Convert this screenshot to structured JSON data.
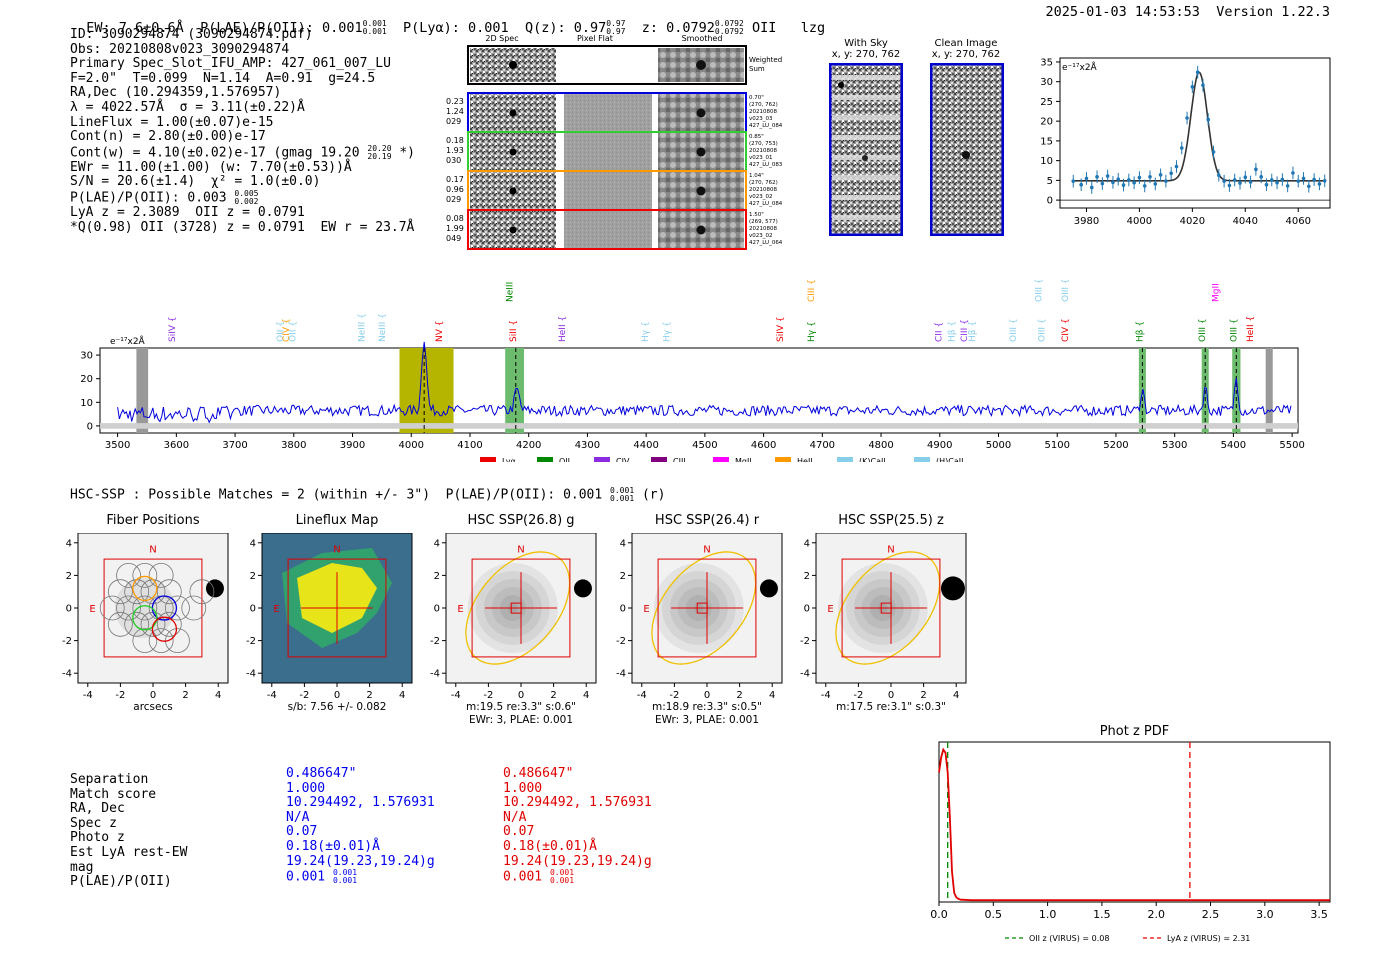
{
  "header": {
    "ew": "EW: 7.6±0.6Å",
    "plae": "P(LAE)/P(OII): 0.001",
    "plae_sup": "0.001",
    "plae_sub": "0.001",
    "plya": "P(Lyα): 0.001",
    "qz": "Q(z): 0.97",
    "qz_sup": "0.97",
    "qz_sub": "0.97",
    "z": "z: 0.0792",
    "z_sup": "0.0792",
    "z_sub": "0.0792",
    "line": "OII",
    "tag": "lzg",
    "timestamp": "2025-01-03 14:53:53",
    "version": "Version 1.22.3"
  },
  "info": {
    "id": "ID: 3090294874 (3090294874.pdf)",
    "obs": "Obs: 20210808v023_3090294874",
    "primary": "Primary Spec_Slot_IFU_AMP: 427_061_007_LU",
    "params": "F=2.0\"  T=0.099  N=1.14  A=0.91  g=24.5",
    "radec": "RA,Dec (10.294359,1.576957)",
    "lambda": "λ = 4022.57Å  σ = 3.11(±0.22)Å",
    "lineflux": "LineFlux = 1.00(±0.07)e-15",
    "contn": "Cont(n) = 2.80(±0.00)e-17",
    "contw": "Cont(w) = 4.10(±0.02)e-17 (gmag 19.20",
    "contw_sup": "20.20",
    "contw_sub": "20.19",
    "contw_tail": " *)",
    "ewr": "EWr = 11.00(±1.00) (w: 7.70(±0.53))Å",
    "sn": "S/N = 20.6(±1.4)  χ² = 1.0(±0.0)",
    "plae": "P(LAE)/P(OII): 0.003",
    "plae_sup": "0.005",
    "plae_sub": "0.002",
    "lyaz": "LyA z = 2.3089  OII z = 0.0791",
    "qline": "*Q(0.98) OII (3728) z = 0.0791  EW r = 23.7Å"
  },
  "stamps": {
    "col_2d": "2D Spec",
    "col_flat": "Pixel Flat",
    "col_smooth": "Smoothed",
    "weighted": "Weighted Sum",
    "rows": [
      {
        "vals": [
          "0.23",
          "1.24",
          "029"
        ],
        "note": [
          "0.70\"",
          "(270, 762)",
          "20210808",
          "v023_03",
          "427_LU_084"
        ],
        "color": "#0000dd"
      },
      {
        "vals": [
          "0.18",
          "1.93",
          "030"
        ],
        "note": [
          "0.85\"",
          "(270, 753)",
          "20210808",
          "v023_01",
          "427_LU_083"
        ],
        "color": "#33cc33"
      },
      {
        "vals": [
          "0.17",
          "0.96",
          "029"
        ],
        "note": [
          "1.04\"",
          "(270, 762)",
          "20210808",
          "v023_02",
          "427_LU_084"
        ],
        "color": "#ff9900"
      },
      {
        "vals": [
          "0.08",
          "1.99",
          "049"
        ],
        "note": [
          "1.50\"",
          "(269, 577)",
          "20210808",
          "v023_02",
          "427_LU_064"
        ],
        "color": "#ee0000"
      }
    ],
    "withsky_title": "With Sky",
    "withsky_xy": "x, y: 270, 762",
    "clean_title": "Clean Image",
    "clean_xy": "x, y: 270, 762"
  },
  "zoom_spec": {
    "unit": "e⁻¹⁷x2Å",
    "xticks": [
      3980,
      4000,
      4020,
      4040,
      4060
    ],
    "yticks": [
      0,
      5,
      10,
      15,
      20,
      25,
      30,
      35
    ],
    "xlim": [
      3970,
      4072
    ],
    "ylim": [
      -2,
      36
    ],
    "points": [
      [
        3975,
        4.8
      ],
      [
        3978,
        3.9
      ],
      [
        3980,
        5.5
      ],
      [
        3982,
        3.2
      ],
      [
        3984,
        5.9
      ],
      [
        3986,
        4.2
      ],
      [
        3988,
        6.1
      ],
      [
        3990,
        4.5
      ],
      [
        3992,
        5.3
      ],
      [
        3994,
        3.8
      ],
      [
        3996,
        5.1
      ],
      [
        3998,
        4.4
      ],
      [
        4000,
        5.7
      ],
      [
        4002,
        3.6
      ],
      [
        4004,
        5.9
      ],
      [
        4006,
        4.1
      ],
      [
        4008,
        6.4
      ],
      [
        4010,
        4.8
      ],
      [
        4012,
        6.8
      ],
      [
        4014,
        8.5
      ],
      [
        4016,
        13.2
      ],
      [
        4018,
        20.8
      ],
      [
        4020,
        28.7
      ],
      [
        4022,
        32.4
      ],
      [
        4024,
        29.1
      ],
      [
        4026,
        20.4
      ],
      [
        4028,
        12.2
      ],
      [
        4030,
        6.3
      ],
      [
        4032,
        4.8
      ],
      [
        4034,
        3.7
      ],
      [
        4036,
        5.1
      ],
      [
        4038,
        4.3
      ],
      [
        4040,
        5.8
      ],
      [
        4042,
        4.6
      ],
      [
        4044,
        7.8
      ],
      [
        4046,
        5.9
      ],
      [
        4048,
        3.9
      ],
      [
        4050,
        5.1
      ],
      [
        4052,
        4.4
      ],
      [
        4054,
        5.2
      ],
      [
        4056,
        3.6
      ],
      [
        4058,
        6.9
      ],
      [
        4060,
        4.8
      ],
      [
        4062,
        5.5
      ],
      [
        4064,
        3.5
      ],
      [
        4066,
        5.2
      ],
      [
        4068,
        4.1
      ],
      [
        4070,
        4.9
      ]
    ]
  },
  "full_spec": {
    "unit": "e⁻¹⁷x2Å",
    "xlim": [
      3470,
      5510
    ],
    "ylim": [
      -3,
      33
    ],
    "xticks": [
      3500,
      3600,
      3700,
      3800,
      3900,
      4000,
      4100,
      4200,
      4300,
      4400,
      4500,
      4600,
      4700,
      4800,
      4900,
      5000,
      5100,
      5200,
      5300,
      5400,
      5500
    ],
    "yticks": [
      0,
      10,
      20,
      30
    ],
    "lines": [
      {
        "label": "SiIV",
        "x": 3598,
        "color": "#8a2be2",
        "row": 1
      },
      {
        "label": "OII",
        "x": 3782,
        "color": "#87ceeb",
        "row": 1
      },
      {
        "label": "CIV",
        "x": 3792,
        "color": "#ff9900",
        "row": 1
      },
      {
        "label": "OII",
        "x": 3803,
        "color": "#87ceeb",
        "row": 1
      },
      {
        "label": "NeIII",
        "x": 3920,
        "color": "#87ceeb",
        "row": 1
      },
      {
        "label": "NeIII",
        "x": 3955,
        "color": "#87ceeb",
        "row": 1
      },
      {
        "label": "NV",
        "x": 4052,
        "color": "#ee0000",
        "row": 1
      },
      {
        "label": "NeIII",
        "x": 4172,
        "color": "#008800",
        "row": 0
      },
      {
        "label": "SiII",
        "x": 4178,
        "color": "#ee0000",
        "row": 1
      },
      {
        "label": "HeII",
        "x": 4262,
        "color": "#8a2be2",
        "row": 1
      },
      {
        "label": "Hγ",
        "x": 4403,
        "color": "#87ceeb",
        "row": 1
      },
      {
        "label": "Hγ",
        "x": 4440,
        "color": "#87ceeb",
        "row": 1
      },
      {
        "label": "SiIV",
        "x": 4633,
        "color": "#ee0000",
        "row": 1
      },
      {
        "label": "CIII",
        "x": 4686,
        "color": "#ff9900",
        "row": 0
      },
      {
        "label": "Hγ",
        "x": 4686,
        "color": "#008800",
        "row": 1
      },
      {
        "label": "CII",
        "x": 4903,
        "color": "#8a2be2",
        "row": 1
      },
      {
        "label": "Hβ",
        "x": 4925,
        "color": "#87ceeb",
        "row": 1
      },
      {
        "label": "CIII",
        "x": 4946,
        "color": "#8a2be2",
        "row": 1
      },
      {
        "label": "Hβ",
        "x": 4960,
        "color": "#87ceeb",
        "row": 1
      },
      {
        "label": "OIII",
        "x": 5030,
        "color": "#87ceeb",
        "row": 1
      },
      {
        "label": "OIII",
        "x": 5073,
        "color": "#87ceeb",
        "row": 0
      },
      {
        "label": "OIII",
        "x": 5078,
        "color": "#87ceeb",
        "row": 1
      },
      {
        "label": "OIII",
        "x": 5118,
        "color": "#87ceeb",
        "row": 0
      },
      {
        "label": "CIV",
        "x": 5118,
        "color": "#ee0000",
        "row": 1
      },
      {
        "label": "Hβ",
        "x": 5245,
        "color": "#008800",
        "row": 1
      },
      {
        "label": "MgII",
        "x": 5375,
        "color": "#ff00ff",
        "row": 0
      },
      {
        "label": "OIII",
        "x": 5352,
        "color": "#008800",
        "row": 1
      },
      {
        "label": "OIII",
        "x": 5405,
        "color": "#008800",
        "row": 1
      },
      {
        "label": "HeII",
        "x": 5433,
        "color": "#ee0000",
        "row": 1
      }
    ],
    "legend": [
      {
        "label": "Lyα",
        "color": "#ee0000"
      },
      {
        "label": "OII",
        "color": "#008800"
      },
      {
        "label": "CIV",
        "color": "#8a2be2"
      },
      {
        "label": "CIII",
        "color": "#800080"
      },
      {
        "label": "MgII",
        "color": "#ff00ff"
      },
      {
        "label": "HeII",
        "color": "#ff9900"
      },
      {
        "label": "(K)CaII",
        "color": "#87ceeb"
      },
      {
        "label": "(H)CaII",
        "color": "#87ceeb"
      }
    ]
  },
  "hsc": {
    "title": "HSC-SSP : Possible Matches = 2 (within +/- 3\")  P(LAE)/P(OII): 0.001",
    "title_sup": "0.001",
    "title_sub": "0.001",
    "title_tail": " (r)",
    "panels": [
      {
        "title": "Fiber Positions",
        "caption1": "arcsecs",
        "caption2": ""
      },
      {
        "title": "Lineflux Map",
        "caption1": "s/b: 7.56 +/- 0.082",
        "caption2": ""
      },
      {
        "title": "HSC SSP(26.8) g",
        "caption1": "m:19.5  re:3.3\"  s:0.6\"",
        "caption2": "EWr: 3, PLAE: 0.001"
      },
      {
        "title": "HSC SSP(26.4) r",
        "caption1": "m:18.9  re:3.3\"  s:0.5\"",
        "caption2": "EWr: 3, PLAE: 0.001"
      },
      {
        "title": "HSC SSP(25.5) z",
        "caption1": "m:17.5  re:3.1\"  s:0.3\"",
        "caption2": ""
      }
    ],
    "ticks": [
      -4,
      -2,
      0,
      2,
      4
    ],
    "n_label": "N",
    "e_label": "E"
  },
  "match_table": {
    "labels": [
      "Separation",
      "Match score",
      "RA, Dec",
      "Spec z",
      "Photo z",
      "Est LyA rest-EW",
      "mag",
      "P(LAE)/P(OII)"
    ],
    "blue": [
      "0.486647\"",
      "1.000",
      "10.294492, 1.576931",
      "N/A",
      "0.07",
      "0.18(±0.01)Å",
      "19.24(19.23,19.24)g",
      "0.001"
    ],
    "red": [
      "0.486647\"",
      "1.000",
      "10.294492, 1.576931",
      "N/A",
      "0.07",
      "0.18(±0.01)Å",
      "19.24(19.23,19.24)g",
      "0.001"
    ],
    "plae_sup": "0.001",
    "plae_sub": "0.001"
  },
  "chart_data": [
    {
      "type": "scatter",
      "title": "",
      "xlabel": "",
      "ylabel": "e⁻¹⁷x2Å",
      "xlim": [
        3970,
        4072
      ],
      "ylim": [
        -2,
        36
      ],
      "note": "zoomed emission line at 4022.57Å with gaussian fit"
    },
    {
      "type": "line",
      "title": "Phot z PDF",
      "xlim": [
        0,
        3.6
      ],
      "ylim": [
        0,
        1.05
      ],
      "xticks": [
        0.0,
        0.5,
        1.0,
        1.5,
        2.0,
        2.5,
        3.0,
        3.5
      ],
      "x": [
        0.0,
        0.02,
        0.04,
        0.06,
        0.08,
        0.1,
        0.12,
        0.14,
        0.16,
        0.18,
        0.2,
        0.3,
        0.5,
        1.0,
        2.0,
        3.6
      ],
      "y": [
        0.85,
        0.95,
        1.0,
        0.98,
        0.85,
        0.55,
        0.2,
        0.06,
        0.03,
        0.02,
        0.015,
        0.012,
        0.012,
        0.012,
        0.012,
        0.012
      ],
      "vlines": [
        {
          "label": "OII z (VIRUS) = 0.08",
          "x": 0.08,
          "color": "#008800"
        },
        {
          "label": "LyA z (VIRUS) = 2.31",
          "x": 2.31,
          "color": "#ee0000"
        }
      ]
    }
  ]
}
